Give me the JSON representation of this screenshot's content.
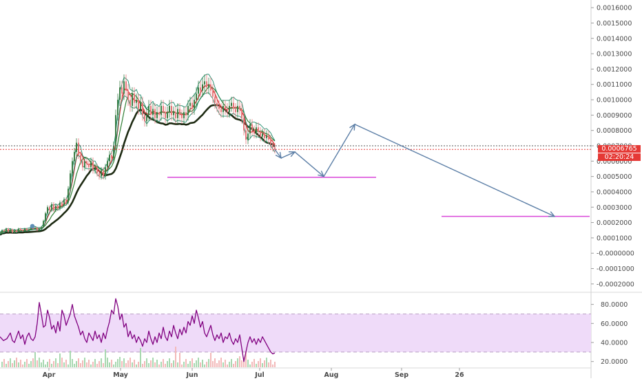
{
  "colors": {
    "background": "#ffffff",
    "axis_text": "#4a4a4a",
    "grid": "#eeeeee",
    "price_line": "#e53935",
    "prev_close_line": "#555555",
    "price_label_bg": "#e53935",
    "candle_up": "#3a7d44",
    "candle_down": "#e8777a",
    "ma_black": "#1d2a12",
    "ma_red": "#d32f2f",
    "ma_green": "#2e7d32",
    "ma_teal": "#1a8a6a",
    "forecast_arrow": "#5b7ea6",
    "support_line": "#d946d9",
    "rsi_line": "#800080",
    "rsi_band": "#efdbf9",
    "rsi_band_border": "#b9a0c4",
    "volume_up": "#a8d8b0",
    "volume_down": "#f3b9b9"
  },
  "price_pane": {
    "current_price_label": "0.0006765",
    "countdown_label": "02:20:24",
    "icons": [
      "indicator-marker-icon"
    ]
  },
  "chart_data": [
    {
      "type": "line",
      "title": "",
      "xlabel": "",
      "ylabel": "",
      "ylim": [
        -0.00025,
        0.00165
      ],
      "y_ticks": [
        "0.0016000",
        "0.0015000",
        "0.0014000",
        "0.0013000",
        "0.0012000",
        "0.0011000",
        "0.0010000",
        "0.0009000",
        "0.0008000",
        "0.0007000",
        "0.0006000",
        "0.0005000",
        "0.0004000",
        "0.0003000",
        "0.0002000",
        "0.0001000",
        "-0.0000000",
        "-0.0001000",
        "-0.0002000"
      ],
      "y_tick_values": [
        0.0016,
        0.0015,
        0.0014,
        0.0013,
        0.0012,
        0.0011,
        0.001,
        0.0009,
        0.0008,
        0.0007,
        0.0006,
        0.0005,
        0.0004,
        0.0003,
        0.0002,
        0.0001,
        0,
        -0.0001,
        -0.0002
      ],
      "x_ticks": [
        "Apr",
        "May",
        "Jun",
        "Jul",
        "Aug",
        "Sep",
        "26"
      ],
      "current_price": 0.0006765,
      "previous_close": 0.0007,
      "series": [],
      "price_path": [
        [
          0,
          0.00013
        ],
        [
          3,
          0.00015
        ],
        [
          6,
          0.000145
        ],
        [
          9,
          0.00016
        ],
        [
          12,
          0.00014
        ],
        [
          15,
          0.000155
        ],
        [
          18,
          0.000135
        ],
        [
          21,
          0.00015
        ],
        [
          24,
          0.00014
        ],
        [
          27,
          0.00016
        ],
        [
          30,
          0.00015
        ],
        [
          33,
          0.000145
        ],
        [
          36,
          0.00016
        ],
        [
          39,
          0.00015
        ],
        [
          42,
          0.000155
        ],
        [
          45,
          0.00017
        ],
        [
          48,
          0.00016
        ],
        [
          51,
          0.000165
        ],
        [
          54,
          0.00015
        ],
        [
          57,
          0.00016
        ],
        [
          60,
          0.00017
        ],
        [
          63,
          0.00021
        ],
        [
          66,
          0.00026
        ],
        [
          69,
          0.0003
        ],
        [
          72,
          0.00028
        ],
        [
          75,
          0.00032
        ],
        [
          78,
          0.00028
        ],
        [
          81,
          0.00031
        ],
        [
          84,
          0.00029
        ],
        [
          87,
          0.00033
        ],
        [
          90,
          0.00031
        ],
        [
          93,
          0.00035
        ],
        [
          96,
          0.00033
        ],
        [
          99,
          0.00042
        ],
        [
          102,
          0.00052
        ],
        [
          105,
          0.0006
        ],
        [
          108,
          0.00066
        ],
        [
          111,
          0.00072
        ],
        [
          114,
          0.00064
        ],
        [
          117,
          0.0006
        ],
        [
          120,
          0.00056
        ],
        [
          123,
          0.0006
        ],
        [
          126,
          0.00058
        ],
        [
          129,
          0.00056
        ],
        [
          132,
          0.0006
        ],
        [
          135,
          0.00054
        ],
        [
          138,
          0.00056
        ],
        [
          141,
          0.00052
        ],
        [
          144,
          0.0005
        ],
        [
          147,
          0.00054
        ],
        [
          150,
          0.0005
        ],
        [
          153,
          0.00056
        ],
        [
          156,
          0.0006
        ],
        [
          159,
          0.00064
        ],
        [
          162,
          0.00062
        ],
        [
          165,
          0.0007
        ],
        [
          168,
          0.0009
        ],
        [
          171,
          0.001
        ],
        [
          174,
          0.00108
        ],
        [
          177,
          0.00104
        ],
        [
          180,
          0.00112
        ],
        [
          183,
          0.00106
        ],
        [
          186,
          0.001
        ],
        [
          189,
          0.00096
        ],
        [
          192,
          0.00104
        ],
        [
          195,
          0.00098
        ],
        [
          198,
          0.001
        ],
        [
          201,
          0.00094
        ],
        [
          204,
          0.00098
        ],
        [
          207,
          0.0009
        ],
        [
          210,
          0.00086
        ],
        [
          213,
          0.0009
        ],
        [
          216,
          0.00096
        ],
        [
          219,
          0.0009
        ],
        [
          222,
          0.00094
        ],
        [
          225,
          0.00088
        ],
        [
          228,
          0.00092
        ],
        [
          231,
          0.0009
        ],
        [
          234,
          0.00096
        ],
        [
          237,
          0.00092
        ],
        [
          240,
          0.00088
        ],
        [
          243,
          0.00092
        ],
        [
          246,
          0.00096
        ],
        [
          249,
          0.0009
        ],
        [
          252,
          0.00092
        ],
        [
          255,
          0.00088
        ],
        [
          258,
          0.00094
        ],
        [
          261,
          0.0009
        ],
        [
          264,
          0.00088
        ],
        [
          267,
          0.00092
        ],
        [
          270,
          0.0009
        ],
        [
          273,
          0.00096
        ],
        [
          276,
          0.00098
        ],
        [
          279,
          0.00094
        ],
        [
          282,
          0.001
        ],
        [
          285,
          0.00104
        ],
        [
          288,
          0.00108
        ],
        [
          291,
          0.00106
        ],
        [
          294,
          0.0011
        ],
        [
          297,
          0.00112
        ],
        [
          300,
          0.00108
        ],
        [
          303,
          0.0011
        ],
        [
          306,
          0.00106
        ],
        [
          309,
          0.00102
        ],
        [
          312,
          0.00098
        ],
        [
          315,
          0.00096
        ],
        [
          318,
          0.00094
        ],
        [
          321,
          0.00092
        ],
        [
          324,
          0.00096
        ],
        [
          327,
          0.00094
        ],
        [
          330,
          0.00092
        ],
        [
          333,
          0.00096
        ],
        [
          336,
          0.00098
        ],
        [
          339,
          0.00094
        ],
        [
          342,
          0.00092
        ],
        [
          345,
          0.00096
        ],
        [
          348,
          0.00094
        ],
        [
          351,
          0.00088
        ],
        [
          354,
          0.0008
        ],
        [
          357,
          0.00074
        ],
        [
          360,
          0.00078
        ],
        [
          363,
          0.00084
        ],
        [
          366,
          0.0008
        ],
        [
          369,
          0.00078
        ],
        [
          372,
          0.00082
        ],
        [
          375,
          0.00079
        ],
        [
          378,
          0.00076
        ],
        [
          381,
          0.00078
        ],
        [
          384,
          0.00075
        ],
        [
          387,
          0.00077
        ],
        [
          390,
          0.00074
        ],
        [
          393,
          0.00071
        ],
        [
          396,
          0.00069
        ],
        [
          399,
          0.000677
        ]
      ],
      "forecast_path": [
        [
          399,
          0.000677
        ],
        [
          408,
          0.00062
        ],
        [
          428,
          0.00066
        ],
        [
          470,
          0.0005
        ],
        [
          515,
          0.00084
        ],
        [
          805,
          0.00024
        ]
      ],
      "support_levels": [
        {
          "value": 0.000495,
          "x_from": 243,
          "x_to": 546
        },
        {
          "value": 0.00024,
          "x_from": 641,
          "x_to": 856
        }
      ]
    },
    {
      "type": "line",
      "title": "",
      "ylim": [
        14,
        92
      ],
      "y_ticks": [
        "80.0000",
        "60.0000",
        "40.0000",
        "20.0000"
      ],
      "y_tick_values": [
        80,
        60,
        40,
        20
      ],
      "band": [
        30,
        70
      ],
      "series": [],
      "rsi_path": [
        [
          0,
          46
        ],
        [
          5,
          42
        ],
        [
          10,
          44
        ],
        [
          15,
          50
        ],
        [
          18,
          42
        ],
        [
          21,
          40
        ],
        [
          24,
          46
        ],
        [
          27,
          52
        ],
        [
          30,
          44
        ],
        [
          33,
          48
        ],
        [
          36,
          38
        ],
        [
          39,
          46
        ],
        [
          42,
          50
        ],
        [
          45,
          44
        ],
        [
          48,
          42
        ],
        [
          51,
          46
        ],
        [
          54,
          60
        ],
        [
          57,
          82
        ],
        [
          60,
          70
        ],
        [
          63,
          56
        ],
        [
          66,
          58
        ],
        [
          69,
          74
        ],
        [
          72,
          66
        ],
        [
          75,
          54
        ],
        [
          78,
          58
        ],
        [
          81,
          50
        ],
        [
          84,
          62
        ],
        [
          87,
          52
        ],
        [
          90,
          74
        ],
        [
          93,
          68
        ],
        [
          96,
          58
        ],
        [
          99,
          64
        ],
        [
          102,
          70
        ],
        [
          105,
          80
        ],
        [
          108,
          68
        ],
        [
          111,
          62
        ],
        [
          114,
          56
        ],
        [
          117,
          48
        ],
        [
          120,
          52
        ],
        [
          123,
          44
        ],
        [
          126,
          40
        ],
        [
          129,
          50
        ],
        [
          132,
          46
        ],
        [
          135,
          42
        ],
        [
          138,
          52
        ],
        [
          141,
          44
        ],
        [
          144,
          48
        ],
        [
          147,
          40
        ],
        [
          150,
          50
        ],
        [
          153,
          44
        ],
        [
          156,
          54
        ],
        [
          159,
          62
        ],
        [
          162,
          74
        ],
        [
          165,
          70
        ],
        [
          168,
          86
        ],
        [
          171,
          78
        ],
        [
          174,
          64
        ],
        [
          177,
          70
        ],
        [
          180,
          56
        ],
        [
          183,
          60
        ],
        [
          186,
          46
        ],
        [
          189,
          52
        ],
        [
          192,
          44
        ],
        [
          195,
          48
        ],
        [
          198,
          40
        ],
        [
          201,
          46
        ],
        [
          204,
          42
        ],
        [
          207,
          36
        ],
        [
          210,
          44
        ],
        [
          213,
          40
        ],
        [
          216,
          52
        ],
        [
          219,
          44
        ],
        [
          222,
          38
        ],
        [
          225,
          46
        ],
        [
          228,
          40
        ],
        [
          231,
          50
        ],
        [
          234,
          44
        ],
        [
          237,
          56
        ],
        [
          240,
          46
        ],
        [
          243,
          42
        ],
        [
          246,
          52
        ],
        [
          249,
          46
        ],
        [
          252,
          58
        ],
        [
          255,
          50
        ],
        [
          258,
          44
        ],
        [
          261,
          54
        ],
        [
          264,
          48
        ],
        [
          267,
          56
        ],
        [
          270,
          50
        ],
        [
          273,
          62
        ],
        [
          276,
          58
        ],
        [
          279,
          68
        ],
        [
          282,
          60
        ],
        [
          285,
          74
        ],
        [
          288,
          66
        ],
        [
          291,
          56
        ],
        [
          294,
          62
        ],
        [
          297,
          50
        ],
        [
          300,
          46
        ],
        [
          303,
          52
        ],
        [
          306,
          58
        ],
        [
          309,
          48
        ],
        [
          312,
          42
        ],
        [
          315,
          48
        ],
        [
          318,
          44
        ],
        [
          321,
          50
        ],
        [
          324,
          40
        ],
        [
          327,
          46
        ],
        [
          330,
          44
        ],
        [
          333,
          50
        ],
        [
          336,
          42
        ],
        [
          339,
          38
        ],
        [
          342,
          44
        ],
        [
          345,
          40
        ],
        [
          348,
          48
        ],
        [
          351,
          34
        ],
        [
          354,
          20
        ],
        [
          357,
          30
        ],
        [
          360,
          40
        ],
        [
          363,
          46
        ],
        [
          366,
          40
        ],
        [
          369,
          44
        ],
        [
          372,
          38
        ],
        [
          375,
          44
        ],
        [
          378,
          40
        ],
        [
          381,
          46
        ],
        [
          384,
          42
        ],
        [
          387,
          38
        ],
        [
          390,
          34
        ],
        [
          393,
          30
        ],
        [
          396,
          28
        ],
        [
          399,
          29
        ]
      ]
    }
  ]
}
